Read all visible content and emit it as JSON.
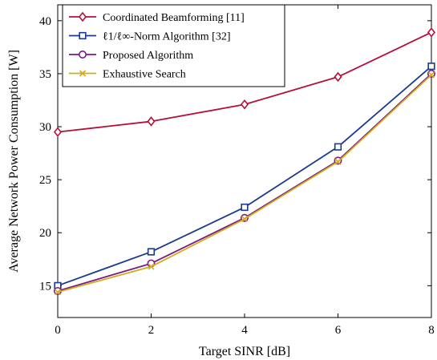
{
  "chart_data": {
    "type": "line",
    "xlabel": "Target SINR [dB]",
    "ylabel": "Average Network Power Consumption [W]",
    "x": [
      0,
      2,
      4,
      6,
      8
    ],
    "xticks": [
      0,
      2,
      4,
      6,
      8
    ],
    "yticks": [
      15,
      20,
      25,
      30,
      35,
      40
    ],
    "xlim": [
      0,
      8
    ],
    "ylim": [
      12.0,
      41.5
    ],
    "grid": false,
    "legend_position": "top-left",
    "series": [
      {
        "name": "Coordinated Beamforming [11]",
        "values": [
          29.5,
          30.5,
          32.1,
          34.7,
          38.9
        ],
        "color": "#b5103a",
        "marker": "diamond"
      },
      {
        "name": "ℓ1/ℓ∞-Norm Algorithm [32]",
        "values": [
          15.0,
          18.2,
          22.4,
          28.1,
          35.7
        ],
        "color": "#1a3a8f",
        "marker": "square"
      },
      {
        "name": "Proposed Algorithm",
        "values": [
          14.5,
          17.1,
          21.4,
          26.8,
          35.0
        ],
        "color": "#7a1a80",
        "marker": "circle"
      },
      {
        "name": "Exhaustive Search",
        "values": [
          14.4,
          16.8,
          21.3,
          26.7,
          34.9
        ],
        "color": "#d4aa18",
        "marker": "x"
      }
    ]
  }
}
